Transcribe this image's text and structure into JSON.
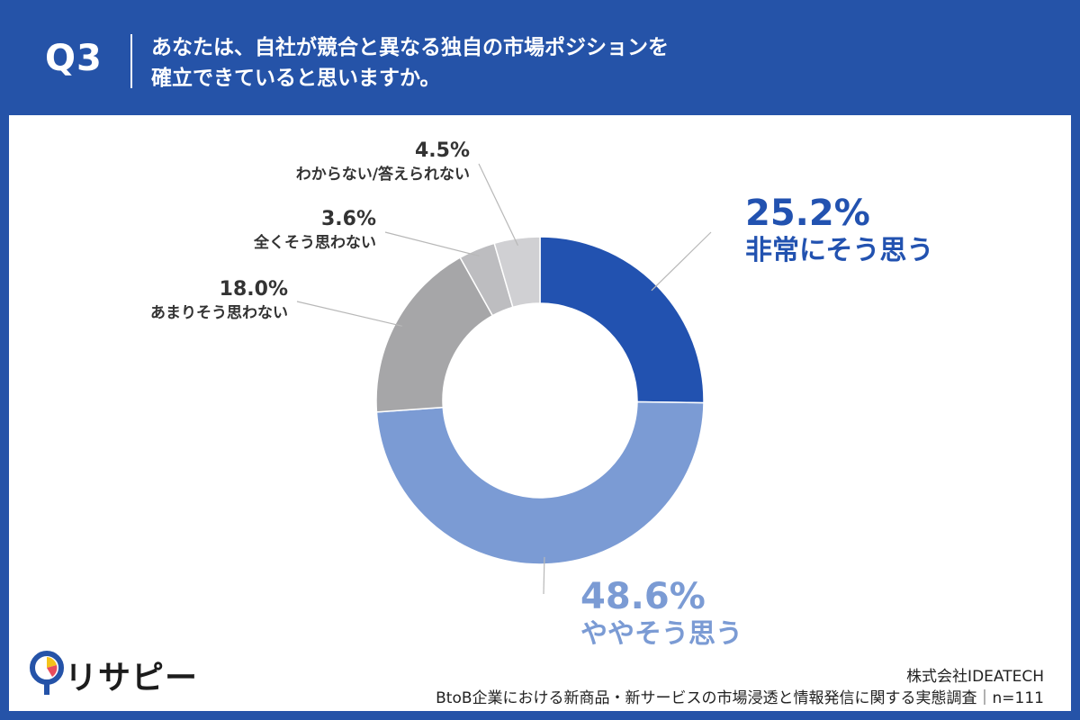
{
  "header": {
    "question_number": "Q3",
    "question_text_line1": "あなたは、自社が競合と異なる独自の市場ポジションを",
    "question_text_line2": "確立できていると思いますか。"
  },
  "chart_data": {
    "type": "pie",
    "style": "donut",
    "categories": [
      "非常にそう思う",
      "ややそう思う",
      "あまりそう思わない",
      "全くそう思わない",
      "わからない/答えられない"
    ],
    "values": [
      25.2,
      48.6,
      18.0,
      3.6,
      4.5
    ],
    "value_labels": [
      "25.2%",
      "48.6%",
      "18.0%",
      "3.6%",
      "4.5%"
    ],
    "colors": [
      "#2252b0",
      "#7b9bd4",
      "#a6a6a8",
      "#bdbdc0",
      "#d0d0d3"
    ],
    "label_colors": [
      "#2252b0",
      "#7b9bd4",
      "#333333",
      "#333333",
      "#333333"
    ],
    "start_angle_deg": 0,
    "direction": "clockwise"
  },
  "brand": {
    "logo_text": "リサピー"
  },
  "footer": {
    "company": "株式会社IDEATECH",
    "survey": "BtoB企業における新商品・新サービスの市場浸透と情報発信に関する実態調査｜n=111"
  }
}
